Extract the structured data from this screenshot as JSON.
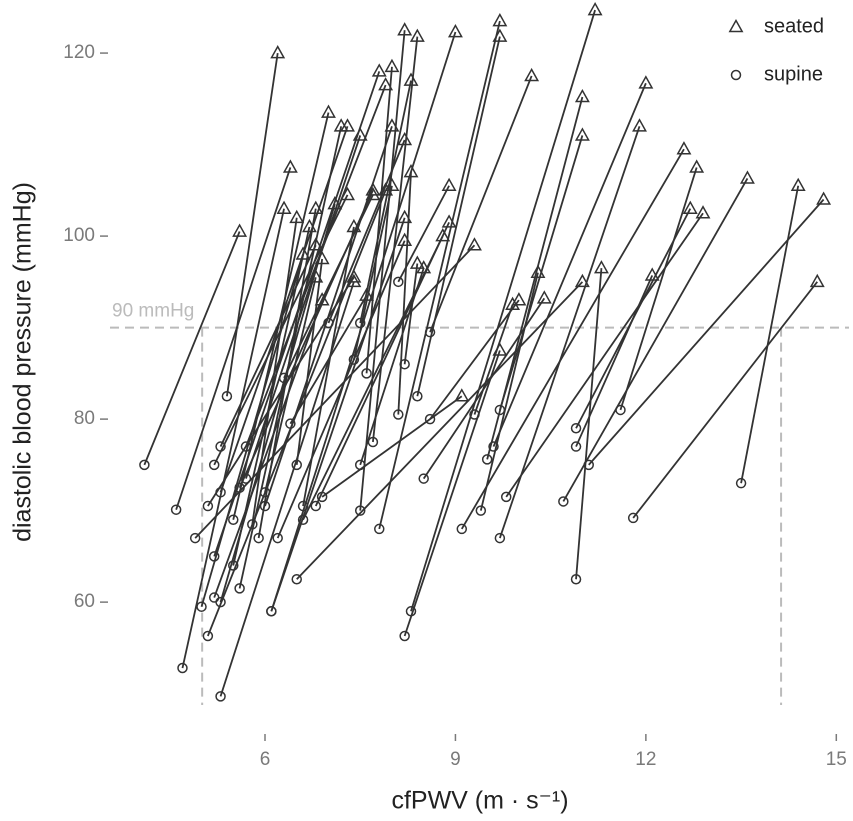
{
  "chart_data": {
    "type": "paired-scatter",
    "x_label": "cfPWV (m · s⁻¹)",
    "y_label": "diastolic blood pressure (mmHg)",
    "xlim": [
      3.7,
      15.2
    ],
    "xticks": [
      6,
      9,
      12,
      15
    ],
    "ylim": [
      46.9,
      125.8
    ],
    "yticks": [
      60,
      80,
      100,
      120
    ],
    "connect_pairs": true,
    "hline": {
      "value": 90,
      "label": "90 mmHg",
      "color": "#bbbbbb"
    },
    "vlines": [
      5.01,
      14.13
    ],
    "legend": "top-right",
    "series": [
      {
        "name": "seated",
        "marker": "triangle",
        "color": "#333333",
        "x": [
          5.6,
          6.4,
          6.2,
          6.3,
          7.4,
          6.6,
          7.9,
          6.9,
          7.1,
          7.2,
          8.2,
          11.2,
          9.7,
          14.4,
          14.7,
          11.3,
          14.8,
          12.8,
          12.1,
          12.7,
          13.6,
          12.6,
          12.9,
          11.9,
          12.0,
          11.0,
          11.0,
          10.4,
          10.3,
          9.9,
          10.0,
          10.2,
          9.7,
          11.0,
          9.3,
          9.0,
          9.1,
          9.7,
          8.2,
          8.4,
          8.0,
          8.3,
          8.9,
          7.8,
          7.3,
          7.0,
          7.5,
          6.7,
          6.5,
          6.8,
          7.3,
          6.8,
          7.9,
          8.0,
          7.7,
          7.4,
          8.9,
          8.8,
          8.5,
          8.0,
          8.2,
          8.3,
          8.2,
          6.9,
          7.4,
          6.8,
          8.4,
          7.7,
          7.6
        ],
        "values": [
          100.5,
          107.5,
          120.0,
          103.0,
          95.0,
          98.0,
          105.0,
          93.0,
          103.5,
          112.0,
          102.0,
          124.7,
          87.5,
          105.5,
          95.0,
          96.5,
          104.0,
          107.5,
          95.7,
          103.0,
          106.3,
          109.5,
          102.5,
          112.0,
          116.7,
          115.2,
          111.0,
          93.2,
          96.0,
          92.5,
          93.0,
          117.5,
          121.8,
          95.0,
          99.0,
          122.3,
          82.5,
          123.5,
          122.5,
          121.8,
          118.5,
          107.0,
          105.5,
          118.0,
          112.0,
          113.5,
          111.0,
          101.0,
          102.0,
          103.0,
          104.5,
          99.0,
          116.5,
          112.0,
          104.5,
          101.0,
          101.5,
          100.0,
          96.5,
          105.5,
          110.5,
          117.0,
          99.5,
          97.5,
          95.5,
          95.5,
          97.0,
          105.0,
          93.5
        ]
      },
      {
        "name": "supine",
        "marker": "circle",
        "color": "#333333",
        "x": [
          4.1,
          4.6,
          5.4,
          4.7,
          5.3,
          5.0,
          5.1,
          5.2,
          5.3,
          5.6,
          6.1,
          8.3,
          8.2,
          13.5,
          11.8,
          10.9,
          11.1,
          11.6,
          10.9,
          10.9,
          10.7,
          9.1,
          9.8,
          9.7,
          9.6,
          9.5,
          9.7,
          8.5,
          9.4,
          9.3,
          8.6,
          8.6,
          8.4,
          6.5,
          4.9,
          6.1,
          6.9,
          7.8,
          7.5,
          7.7,
          7.6,
          8.1,
          8.1,
          5.2,
          5.3,
          5.5,
          5.7,
          5.5,
          5.8,
          5.9,
          5.2,
          5.3,
          5.7,
          6.0,
          6.3,
          6.6,
          6.8,
          6.6,
          7.5,
          7.4,
          7.0,
          7.5,
          6.2,
          6.5,
          5.1,
          6.0,
          8.2,
          5.6,
          6.4
        ],
        "values": [
          75.0,
          70.1,
          82.5,
          52.8,
          49.7,
          59.5,
          56.3,
          60.5,
          60.0,
          61.5,
          59.0,
          59.0,
          56.3,
          73.0,
          69.2,
          62.5,
          75.0,
          81.0,
          77.0,
          79.0,
          71.0,
          68.0,
          71.5,
          67.0,
          77.0,
          75.6,
          81.0,
          73.5,
          70.0,
          80.5,
          80.0,
          89.5,
          82.5,
          62.5,
          67.0,
          59.0,
          71.5,
          68.0,
          70.0,
          77.5,
          85.0,
          80.5,
          95.0,
          65.0,
          72.0,
          69.0,
          73.5,
          64.0,
          68.5,
          67.0,
          75.0,
          77.0,
          77.0,
          70.5,
          84.5,
          70.5,
          70.5,
          69.0,
          75.0,
          86.5,
          90.5,
          90.5,
          67.0,
          75.0,
          70.5,
          72.0,
          86.0,
          72.5,
          79.5
        ]
      }
    ]
  }
}
